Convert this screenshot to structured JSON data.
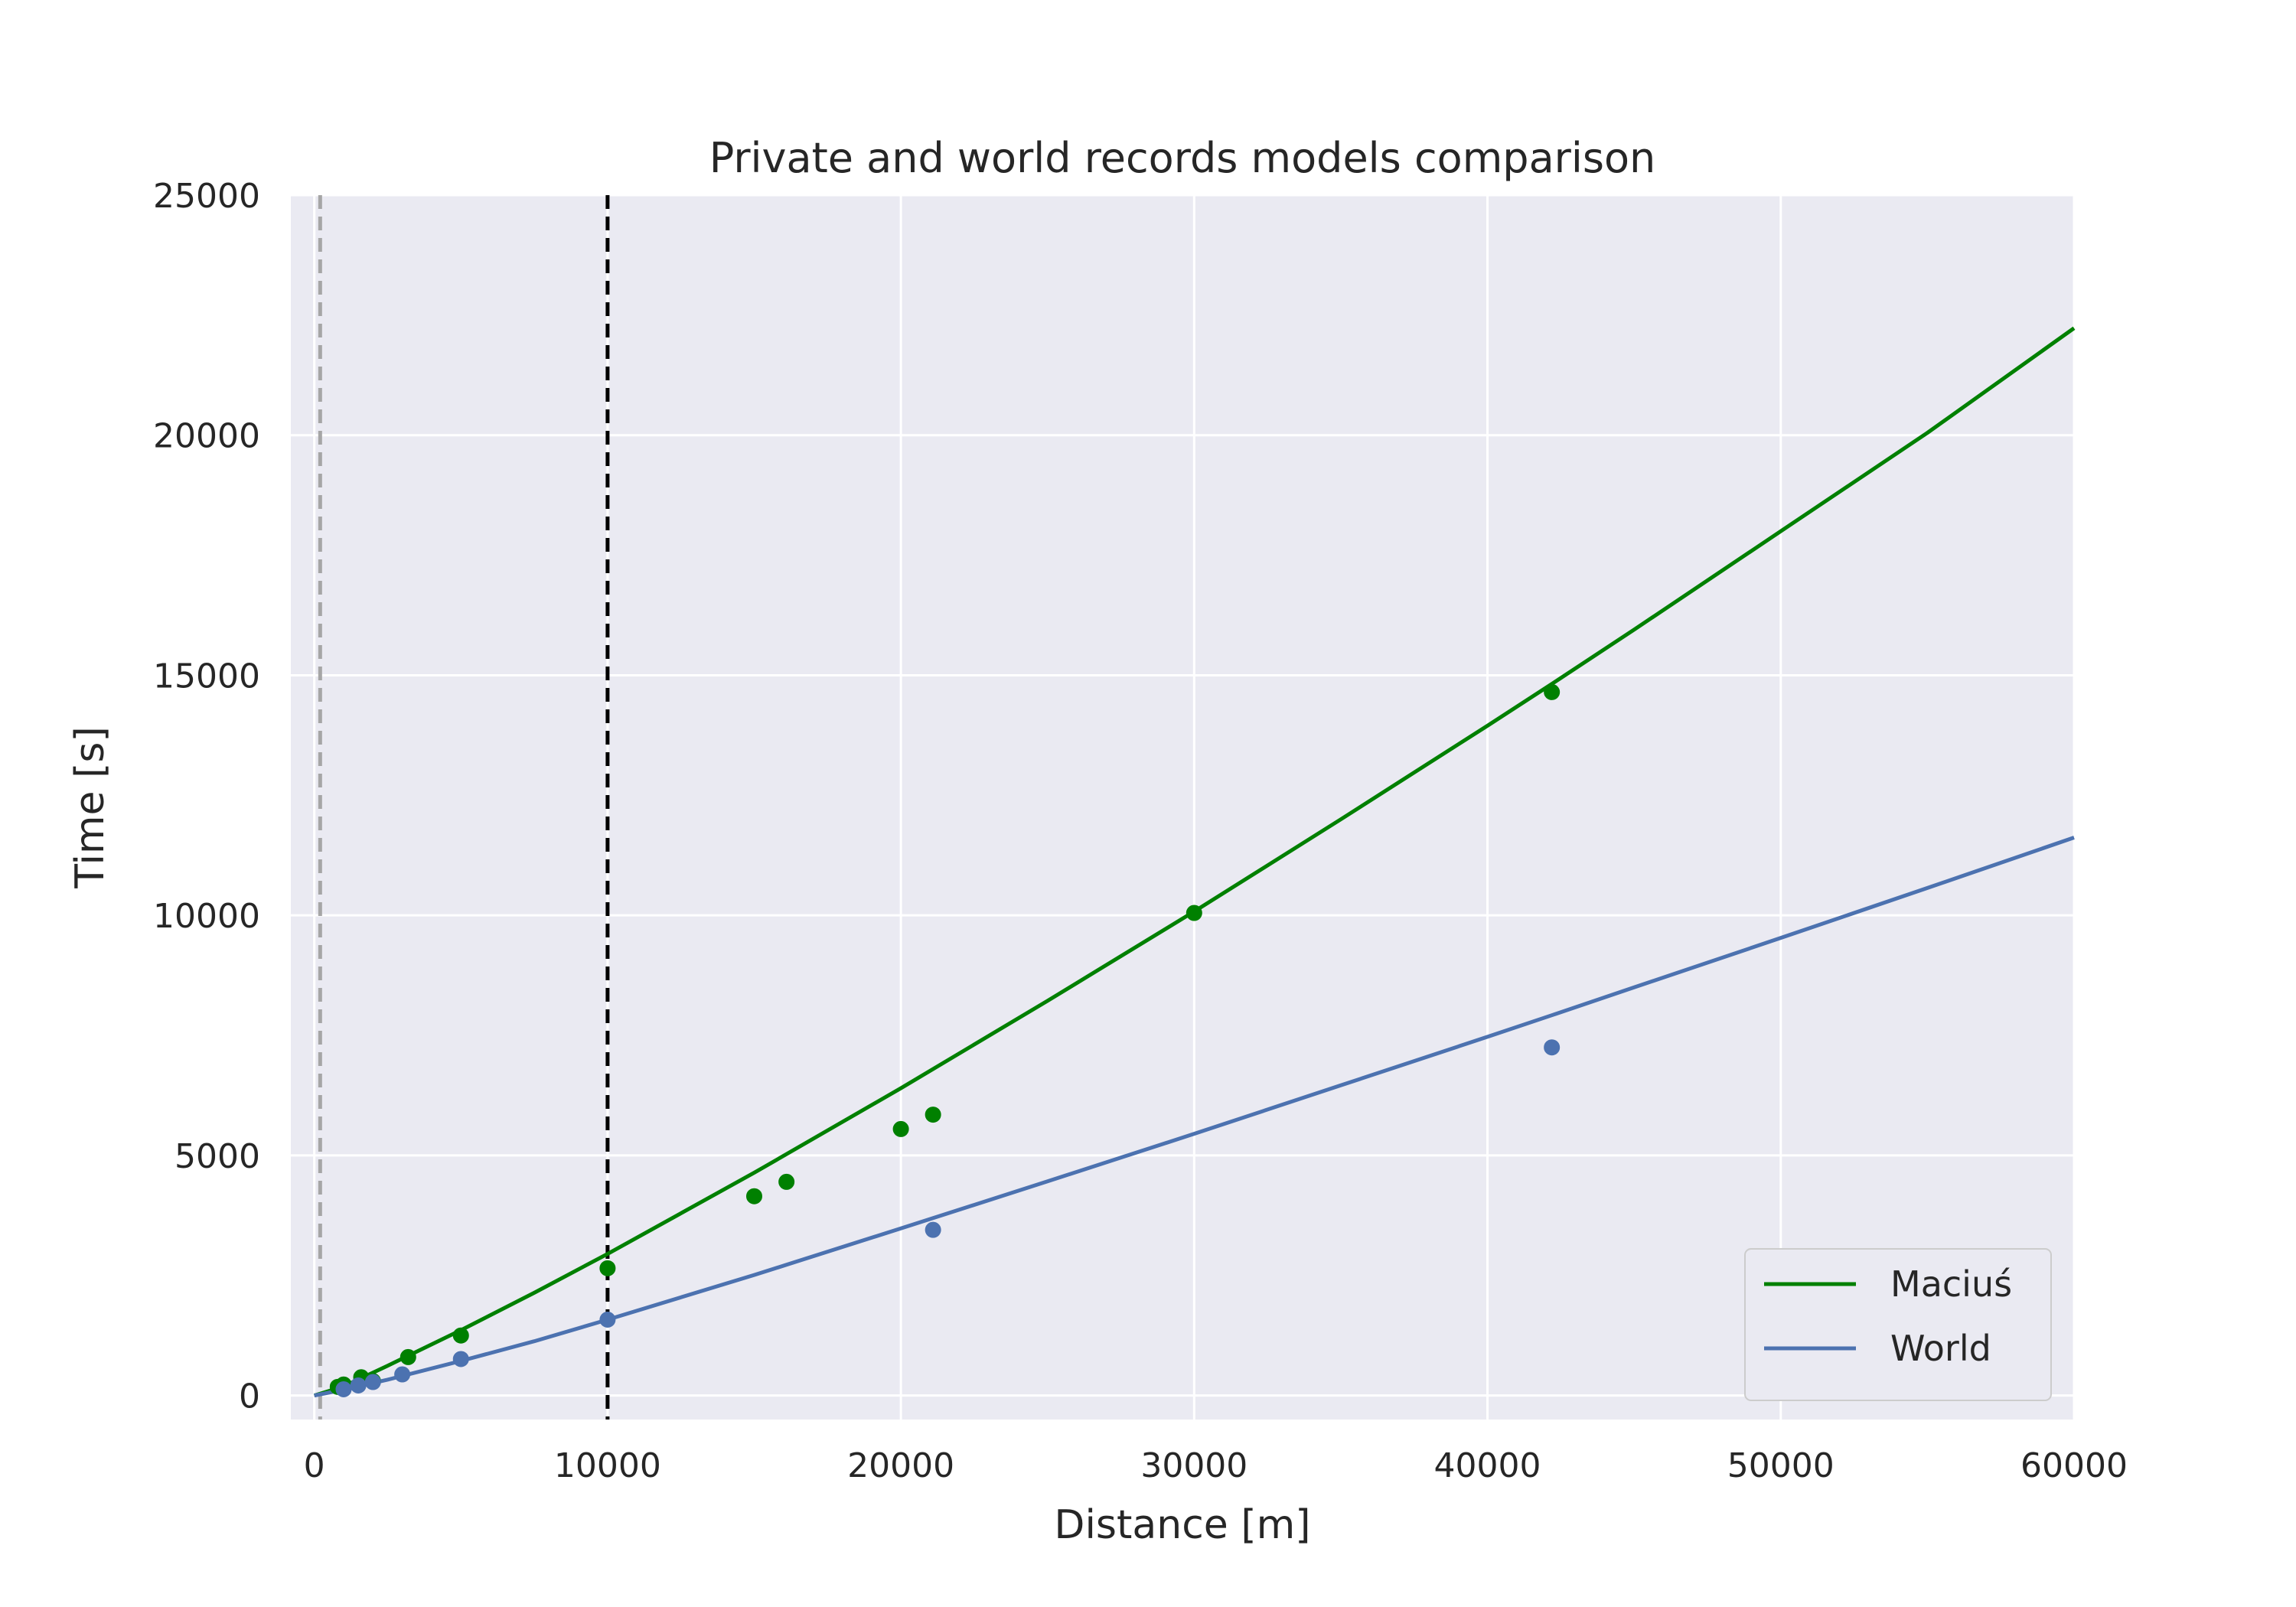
{
  "chart_data": {
    "type": "line",
    "title": "Private and world records models comparison",
    "xlabel": "Distance [m]",
    "ylabel": "Time [s]",
    "xlim": [
      -800,
      60000
    ],
    "ylim": [
      -500,
      25000
    ],
    "xticks": [
      0,
      10000,
      20000,
      30000,
      40000,
      50000,
      60000
    ],
    "yticks": [
      0,
      5000,
      10000,
      15000,
      20000,
      25000
    ],
    "grid": true,
    "legend_position": "bottom-right",
    "reference_lines": [
      {
        "x": 200,
        "color": "#a6a6a6",
        "style": "dashed"
      },
      {
        "x": 10000,
        "color": "#000000",
        "style": "dashed"
      }
    ],
    "series": [
      {
        "name": "Maciuś",
        "color": "#008000",
        "line": {
          "x": [
            0,
            1000,
            2500,
            5000,
            7500,
            10000,
            15000,
            20000,
            25000,
            30000,
            35000,
            40000,
            42195,
            45000,
            50000,
            55000,
            60000
          ],
          "y": [
            0,
            190,
            620,
            1360,
            2140,
            2950,
            4640,
            6400,
            8220,
            10080,
            12000,
            13950,
            14820,
            15950,
            18000,
            20050,
            22230
          ]
        },
        "points": {
          "x": [
            800,
            1000,
            1600,
            2000,
            3200,
            5000,
            10000,
            15000,
            16100,
            20000,
            21097,
            30000,
            42195
          ],
          "y": [
            180,
            230,
            380,
            300,
            800,
            1250,
            2650,
            4150,
            4450,
            5550,
            5850,
            10050,
            14650
          ]
        }
      },
      {
        "name": "World",
        "color": "#4c72b0",
        "line": {
          "x": [
            0,
            1000,
            2500,
            5000,
            7500,
            10000,
            15000,
            20000,
            25000,
            30000,
            35000,
            40000,
            42195,
            45000,
            50000,
            55000,
            60000
          ],
          "y": [
            0,
            120,
            330,
            720,
            1130,
            1580,
            2510,
            3480,
            4460,
            5450,
            6460,
            7470,
            7920,
            8500,
            9530,
            10570,
            11620
          ]
        },
        "points": {
          "x": [
            1000,
            1500,
            2000,
            3000,
            5000,
            10000,
            21097,
            42195
          ],
          "y": [
            130,
            210,
            280,
            440,
            760,
            1580,
            3450,
            7250
          ]
        }
      }
    ]
  }
}
